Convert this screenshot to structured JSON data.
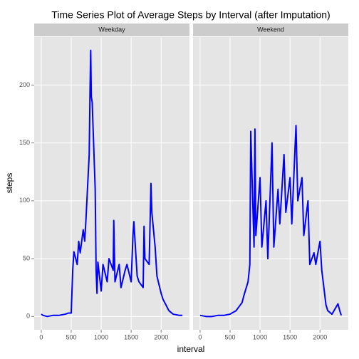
{
  "chart_data": {
    "type": "line",
    "title": "Time Series Plot of Average Steps by Interval (after Imputation)",
    "x_label": "interval",
    "y_label": "steps",
    "color": "#0000ff",
    "grid": true,
    "xlim": [
      -117.75,
      2472.75
    ],
    "xticks": [
      0,
      500,
      1000,
      1500,
      2000
    ],
    "ylim": [
      -11.5,
      241.5
    ],
    "yticks": [
      0,
      50,
      100,
      150,
      200
    ],
    "panels": [
      {
        "name": "Weekday",
        "x": [
          0,
          30,
          100,
          200,
          300,
          400,
          455,
          500,
          525,
          545,
          600,
          625,
          650,
          700,
          725,
          745,
          800,
          815,
          825,
          835,
          850,
          900,
          915,
          930,
          945,
          1000,
          1030,
          1100,
          1130,
          1200,
          1210,
          1230,
          1300,
          1330,
          1400,
          1430,
          1500,
          1530,
          1545,
          1600,
          1630,
          1700,
          1715,
          1730,
          1800,
          1830,
          1845,
          1900,
          1930,
          2000,
          2030,
          2100,
          2130,
          2200,
          2300,
          2355
        ],
        "values": [
          2,
          1,
          0,
          1,
          1,
          2,
          3,
          3,
          40,
          56,
          45,
          65,
          55,
          75,
          65,
          83,
          140,
          200,
          230,
          190,
          185,
          110,
          40,
          20,
          47,
          22,
          45,
          30,
          50,
          40,
          83,
          30,
          45,
          25,
          40,
          45,
          30,
          70,
          82,
          35,
          30,
          25,
          78,
          50,
          45,
          115,
          90,
          60,
          35,
          20,
          15,
          8,
          5,
          2,
          1,
          1
        ]
      },
      {
        "name": "Weekend",
        "x": [
          0,
          100,
          200,
          300,
          400,
          500,
          530,
          600,
          700,
          730,
          800,
          830,
          845,
          900,
          915,
          930,
          1000,
          1030,
          1100,
          1130,
          1200,
          1230,
          1300,
          1330,
          1400,
          1430,
          1500,
          1530,
          1600,
          1630,
          1700,
          1730,
          1800,
          1830,
          1900,
          1930,
          2000,
          2030,
          2100,
          2130,
          2200,
          2300,
          2330,
          2355
        ],
        "values": [
          1,
          0,
          0,
          1,
          1,
          2,
          3,
          5,
          12,
          18,
          30,
          45,
          160,
          60,
          162,
          70,
          120,
          60,
          100,
          50,
          150,
          60,
          110,
          80,
          140,
          90,
          120,
          80,
          165,
          100,
          120,
          70,
          100,
          45,
          55,
          45,
          65,
          40,
          10,
          5,
          2,
          11,
          5,
          1
        ]
      }
    ]
  }
}
